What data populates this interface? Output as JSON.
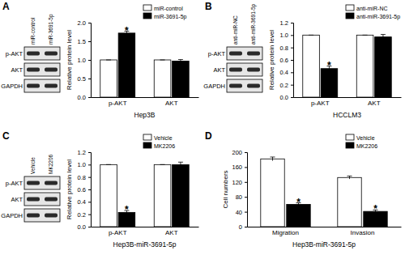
{
  "chart_data": [
    {
      "type": "bar",
      "categories": [
        "p-AKT",
        "AKT"
      ],
      "series": [
        {
          "name": "miR-control",
          "color": "#ffffff",
          "values": [
            1,
            1
          ],
          "errors": [
            0,
            0
          ]
        },
        {
          "name": "miR-3691-5p",
          "color": "#000000",
          "values": [
            1.72,
            0.97
          ],
          "errors": [
            0.05,
            0.04
          ]
        }
      ],
      "y_label": "Relative protein level",
      "x_label": "Hep3B",
      "ylim": [
        0,
        2
      ],
      "yticks": [
        {
          "value": 0,
          "label": "0.0"
        },
        {
          "value": 0.5,
          "label": "0.5"
        },
        {
          "value": 1,
          "label": "1.0"
        },
        {
          "value": 1.5,
          "label": "1.5"
        },
        {
          "value": 2,
          "label": "2.0"
        }
      ],
      "legend": "top-right",
      "annotations": [
        {
          "text": "*",
          "series": 1,
          "category": 0
        }
      ]
    },
    {
      "type": "bar",
      "categories": [
        "p-AKT",
        "AKT"
      ],
      "series": [
        {
          "name": "anti-miR-NC",
          "color": "#ffffff",
          "values": [
            1,
            1
          ],
          "errors": [
            0,
            0
          ]
        },
        {
          "name": "anti-miR-3691-5p",
          "color": "#000000",
          "values": [
            0.46,
            0.97
          ],
          "errors": [
            0.04,
            0.04
          ]
        }
      ],
      "y_label": "Relative protein level",
      "x_label": "HCCLM3",
      "ylim": [
        0,
        1.2
      ],
      "yticks": [
        {
          "value": 0,
          "label": "0.0"
        },
        {
          "value": 0.2,
          "label": "0.2"
        },
        {
          "value": 0.4,
          "label": "0.4"
        },
        {
          "value": 0.6,
          "label": "0.6"
        },
        {
          "value": 0.8,
          "label": "0.8"
        },
        {
          "value": 1,
          "label": "1.0"
        },
        {
          "value": 1.2,
          "label": "1.2"
        }
      ],
      "legend": "top-right",
      "annotations": [
        {
          "text": "*",
          "series": 1,
          "category": 0
        }
      ]
    },
    {
      "type": "bar",
      "categories": [
        "p-AKT",
        "AKT"
      ],
      "series": [
        {
          "name": "Vehicle",
          "color": "#ffffff",
          "values": [
            1,
            1
          ],
          "errors": [
            0,
            0
          ]
        },
        {
          "name": "MK2206",
          "color": "#000000",
          "values": [
            0.23,
            1.0
          ],
          "errors": [
            0.03,
            0.04
          ]
        }
      ],
      "y_label": "Relative protein level",
      "x_label": "Hep3B-miR-3691-5p",
      "ylim": [
        0,
        1.2
      ],
      "yticks": [
        {
          "value": 0,
          "label": "0.0"
        },
        {
          "value": 0.2,
          "label": "0.2"
        },
        {
          "value": 0.4,
          "label": "0.4"
        },
        {
          "value": 0.6,
          "label": "0.6"
        },
        {
          "value": 0.8,
          "label": "0.8"
        },
        {
          "value": 1,
          "label": "1.0"
        },
        {
          "value": 1.2,
          "label": "1.2"
        }
      ],
      "legend": "top-right",
      "annotations": [
        {
          "text": "*",
          "series": 1,
          "category": 0
        }
      ]
    },
    {
      "type": "bar",
      "categories": [
        "Migration",
        "Invasion"
      ],
      "series": [
        {
          "name": "Vehicle",
          "color": "#ffffff",
          "values": [
            182,
            132
          ],
          "errors": [
            5,
            4
          ]
        },
        {
          "name": "MK2206",
          "color": "#000000",
          "values": [
            60,
            41
          ],
          "errors": [
            4,
            4
          ]
        }
      ],
      "y_label": "Cell numbers",
      "x_label": "Hep3B-miR-3691-5p",
      "ylim": [
        0,
        200
      ],
      "yticks": [
        0,
        40,
        80,
        120,
        160,
        200
      ],
      "legend": "top-right",
      "annotations": [
        {
          "text": "*",
          "series": 1,
          "category": 0
        },
        {
          "text": "*",
          "series": 1,
          "category": 1
        }
      ]
    }
  ],
  "panels": [
    "A",
    "B",
    "C",
    "D"
  ],
  "blots": [
    {
      "lanes": [
        "miR-control",
        "miR-3691-5p"
      ],
      "rows": [
        "p-AKT",
        "AKT",
        "GAPDH"
      ]
    },
    {
      "lanes": [
        "anti-miR-NC",
        "anti-miR-3691-5p"
      ],
      "rows": [
        "p-AKT",
        "AKT",
        "GAPDH"
      ]
    },
    {
      "lanes": [
        "Vehicle",
        "MK2206"
      ],
      "rows": [
        "p-AKT",
        "AKT",
        "GAPDH"
      ]
    }
  ]
}
